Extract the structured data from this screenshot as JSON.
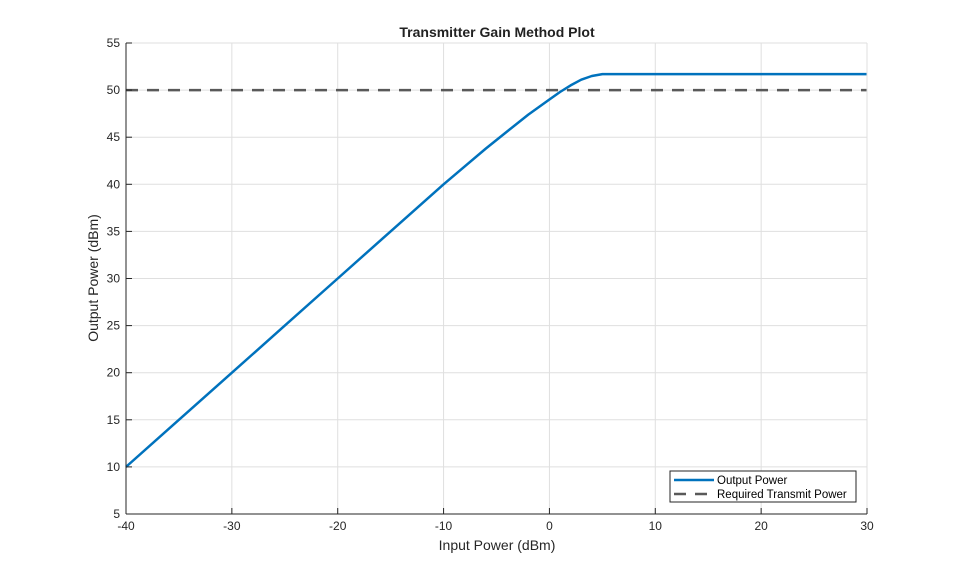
{
  "chart_data": {
    "type": "line",
    "title": "Transmitter Gain Method Plot",
    "xlabel": "Input Power (dBm)",
    "ylabel": "Output Power (dBm)",
    "xlim": [
      -40,
      30
    ],
    "ylim": [
      5,
      55
    ],
    "xticks": [
      -40,
      -30,
      -20,
      -10,
      0,
      10,
      20,
      30
    ],
    "yticks": [
      5,
      10,
      15,
      20,
      25,
      30,
      35,
      40,
      45,
      50,
      55
    ],
    "grid": true,
    "legend_position": "lower right",
    "series": [
      {
        "name": "Output Power",
        "style": "solid",
        "color": "#0072BD",
        "x": [
          -40,
          -35,
          -30,
          -25,
          -20,
          -15,
          -10,
          -8,
          -6,
          -4,
          -2,
          0,
          1,
          2,
          3,
          4,
          5,
          10,
          15,
          20,
          25,
          30
        ],
        "y": [
          10,
          15,
          20,
          25,
          30,
          35,
          40,
          41.9,
          43.8,
          45.6,
          47.4,
          49.0,
          49.8,
          50.5,
          51.1,
          51.5,
          51.7,
          51.7,
          51.7,
          51.7,
          51.7,
          51.7
        ]
      },
      {
        "name": "Required Transmit Power",
        "style": "dashed",
        "color": "#595959",
        "x": [
          -40,
          30
        ],
        "y": [
          50,
          50
        ]
      }
    ]
  }
}
